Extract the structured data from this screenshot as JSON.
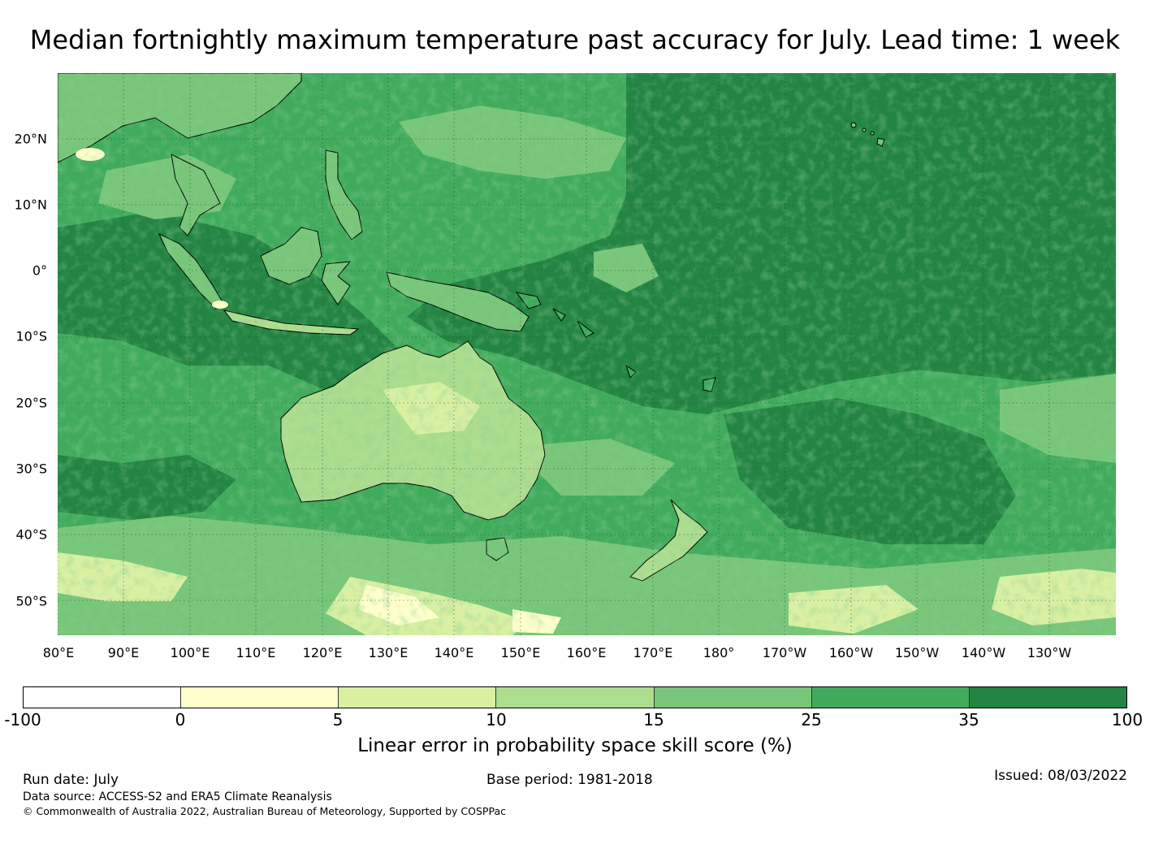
{
  "title": "Median fortnightly maximum temperature past accuracy for July. Lead time: 1 week",
  "lat_labels": [
    "20°N",
    "10°N",
    "0°",
    "10°S",
    "20°S",
    "30°S",
    "40°S",
    "50°S"
  ],
  "lon_labels": [
    "80°E",
    "90°E",
    "100°E",
    "110°E",
    "120°E",
    "130°E",
    "140°E",
    "150°E",
    "160°E",
    "170°E",
    "180°",
    "170°W",
    "160°W",
    "150°W",
    "140°W",
    "130°W"
  ],
  "colorbar": {
    "ticks": [
      "-100",
      "0",
      "5",
      "10",
      "15",
      "25",
      "35",
      "100"
    ],
    "colors": [
      "#ffffff",
      "#ffffcc",
      "#d9f0a3",
      "#addd8e",
      "#78c679",
      "#41ab5d",
      "#238443"
    ],
    "label": "Linear error in probability space skill score (%)"
  },
  "footer": {
    "run_date": "Run date: July",
    "base_period": "Base period: 1981-2018",
    "issued": "Issued: 08/03/2022",
    "data_source": "Data source: ACCESS-S2 and ERA5 Climate Reanalysis",
    "copyright": "© Commonwealth of Australia 2022, Australian Bureau of Meteorology, Supported by COSPPac"
  }
}
